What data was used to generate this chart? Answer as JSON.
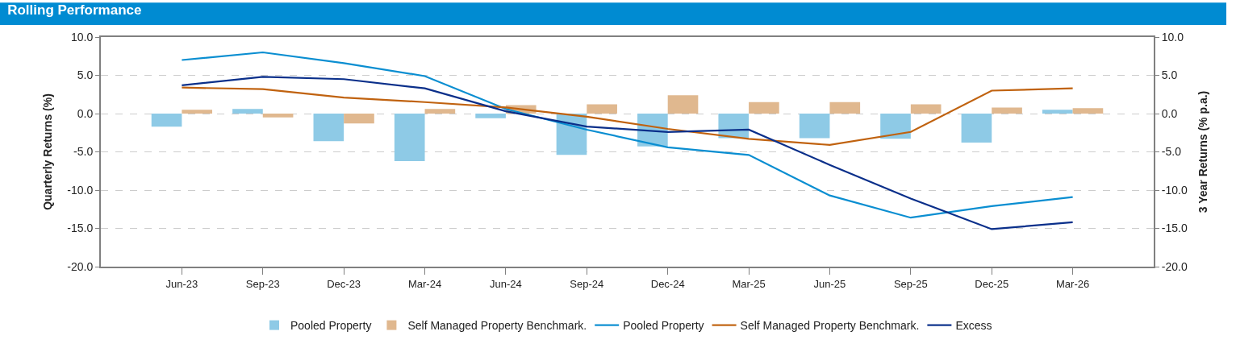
{
  "chart_data": {
    "type": "bar",
    "title": "Rolling Performance",
    "categories": [
      "Jun-23",
      "Sep-23",
      "Dec-23",
      "Mar-24",
      "Jun-24",
      "Sep-24",
      "Dec-24",
      "Mar-25",
      "Jun-25",
      "Sep-25",
      "Dec-25",
      "Mar-26"
    ],
    "ylabel": "Quarterly Returns (%)",
    "y2label": "3 Year Returns (% p.a.)",
    "series": [
      {
        "name": "Pooled Property",
        "color": "#8ecae6",
        "values": [
          -1.7,
          0.6,
          -3.6,
          -6.2,
          -0.6,
          -5.4,
          -4.3,
          -3.2,
          -3.2,
          -3.3,
          -3.8,
          0.5
        ]
      },
      {
        "name": "Self Managed Property Benchmark.",
        "color": "#e0b88f",
        "values": [
          0.5,
          -0.5,
          -1.3,
          0.6,
          1.1,
          1.2,
          2.4,
          1.5,
          1.5,
          1.2,
          0.8,
          0.7
        ]
      },
      {
        "name": "Pooled Property",
        "type": "line",
        "axis": "y2",
        "color": "#0a8ed1",
        "values": [
          7.0,
          8.0,
          6.6,
          4.9,
          0.6,
          -2.1,
          -4.4,
          -5.4,
          -10.7,
          -13.6,
          -12.1,
          -10.9
        ]
      },
      {
        "name": "Self Managed Property Benchmark.",
        "type": "line",
        "axis": "y2",
        "color": "#c0620f",
        "values": [
          3.4,
          3.2,
          2.1,
          1.5,
          0.8,
          -0.4,
          -2.0,
          -3.3,
          -4.1,
          -2.4,
          3.0,
          3.3
        ]
      },
      {
        "name": "Excess",
        "type": "line",
        "axis": "y2",
        "color": "#0a2f8a",
        "values": [
          3.7,
          4.8,
          4.5,
          3.3,
          0.3,
          -1.7,
          -2.4,
          -2.1,
          -6.7,
          -11.1,
          -15.1,
          -14.2
        ]
      }
    ],
    "ylim": [
      -20,
      10
    ],
    "yticks": [
      {
        "value": -20,
        "label": "-20.0"
      },
      {
        "value": -15,
        "label": "-15.0"
      },
      {
        "value": -10,
        "label": "-10.0"
      },
      {
        "value": -5,
        "label": "-5.0"
      },
      {
        "value": 0,
        "label": "0.0"
      },
      {
        "value": 5,
        "label": "5.0"
      },
      {
        "value": 10,
        "label": "10.0"
      }
    ],
    "y2lim": [
      -20,
      10
    ],
    "y2ticks": [
      {
        "value": -20,
        "label": "-20.0"
      },
      {
        "value": -15,
        "label": "-15.0"
      },
      {
        "value": -10,
        "label": "-10.0"
      },
      {
        "value": -5,
        "label": "-5.0"
      },
      {
        "value": 0,
        "label": "0.0"
      },
      {
        "value": 5,
        "label": "5.0"
      },
      {
        "value": 10,
        "label": "10.0"
      }
    ],
    "grid": "y",
    "legend": "bottom",
    "line_style": "solid",
    "marker": "none"
  }
}
